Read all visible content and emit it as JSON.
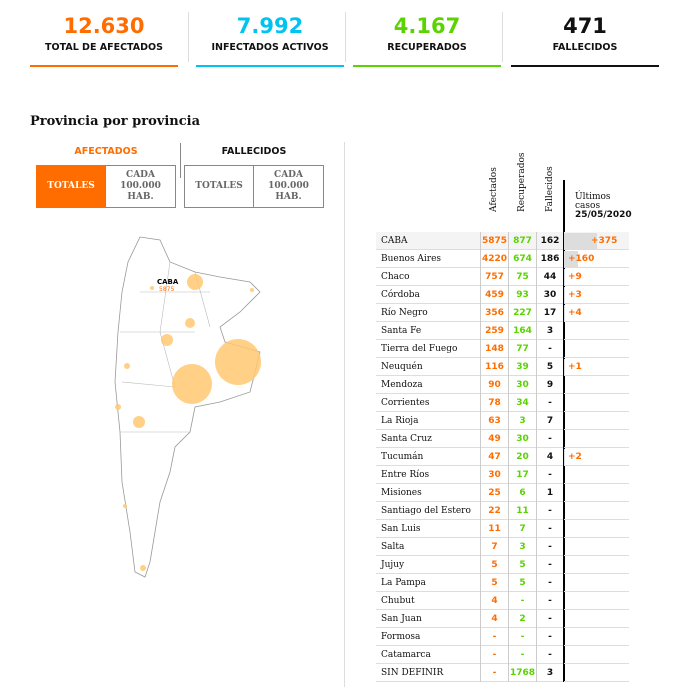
{
  "stats": [
    {
      "value": "12.630",
      "label": "TOTAL DE AFECTADOS",
      "color": "#ff6d00"
    },
    {
      "value": "7.992",
      "label": "INFECTADOS ACTIVOS",
      "color": "#00c3f0"
    },
    {
      "value": "4.167",
      "label": "RECUPERADOS",
      "color": "#5ad300"
    },
    {
      "value": "471",
      "label": "FALLECIDOS",
      "color": "#111111"
    }
  ],
  "title": "Provincia por provincia",
  "filters": {
    "afectados": "AFECTADOS",
    "fallecidos": "FALLECIDOS",
    "totales": "TOTALES",
    "per100k": "CADA 100.000 HAB.",
    "selected": "AFECTADOS / TOTALES"
  },
  "map": {
    "label": "CABA",
    "value": "5875"
  },
  "table": {
    "headers": {
      "afectados": "Afectados",
      "recuperados": "Recuperados",
      "fallecidos": "Fallecidos",
      "last1": "Últimos casos",
      "last2": "25/05/2020"
    },
    "rows": [
      {
        "name": "CABA",
        "a": "5875",
        "r": "877",
        "f": "162",
        "last": "+375",
        "lastv": 375
      },
      {
        "name": "Buenos Aires",
        "a": "4220",
        "r": "674",
        "f": "186",
        "last": "+160",
        "lastv": 160
      },
      {
        "name": "Chaco",
        "a": "757",
        "r": "75",
        "f": "44",
        "last": "+9",
        "lastv": 9
      },
      {
        "name": "Córdoba",
        "a": "459",
        "r": "93",
        "f": "30",
        "last": "+3",
        "lastv": 3
      },
      {
        "name": "Río Negro",
        "a": "356",
        "r": "227",
        "f": "17",
        "last": "+4",
        "lastv": 4
      },
      {
        "name": "Santa Fe",
        "a": "259",
        "r": "164",
        "f": "3",
        "last": "",
        "lastv": 0
      },
      {
        "name": "Tierra del Fuego",
        "a": "148",
        "r": "77",
        "f": "-",
        "last": "",
        "lastv": 0
      },
      {
        "name": "Neuquén",
        "a": "116",
        "r": "39",
        "f": "5",
        "last": "+1",
        "lastv": 1
      },
      {
        "name": "Mendoza",
        "a": "90",
        "r": "30",
        "f": "9",
        "last": "",
        "lastv": 0
      },
      {
        "name": "Corrientes",
        "a": "78",
        "r": "34",
        "f": "-",
        "last": "",
        "lastv": 0
      },
      {
        "name": "La Rioja",
        "a": "63",
        "r": "3",
        "f": "7",
        "last": "",
        "lastv": 0
      },
      {
        "name": "Santa Cruz",
        "a": "49",
        "r": "30",
        "f": "-",
        "last": "",
        "lastv": 0
      },
      {
        "name": "Tucumán",
        "a": "47",
        "r": "20",
        "f": "4",
        "last": "+2",
        "lastv": 2
      },
      {
        "name": "Entre Ríos",
        "a": "30",
        "r": "17",
        "f": "-",
        "last": "",
        "lastv": 0
      },
      {
        "name": "Misiones",
        "a": "25",
        "r": "6",
        "f": "1",
        "last": "",
        "lastv": 0
      },
      {
        "name": "Santiago del Estero",
        "a": "22",
        "r": "11",
        "f": "-",
        "last": "",
        "lastv": 0
      },
      {
        "name": "San Luis",
        "a": "11",
        "r": "7",
        "f": "-",
        "last": "",
        "lastv": 0
      },
      {
        "name": "Salta",
        "a": "7",
        "r": "3",
        "f": "-",
        "last": "",
        "lastv": 0
      },
      {
        "name": "Jujuy",
        "a": "5",
        "r": "5",
        "f": "-",
        "last": "",
        "lastv": 0
      },
      {
        "name": "La Pampa",
        "a": "5",
        "r": "5",
        "f": "-",
        "last": "",
        "lastv": 0
      },
      {
        "name": "Chubut",
        "a": "4",
        "r": "-",
        "f": "-",
        "last": "",
        "lastv": 0
      },
      {
        "name": "San Juan",
        "a": "4",
        "r": "2",
        "f": "-",
        "last": "",
        "lastv": 0
      },
      {
        "name": "Formosa",
        "a": "-",
        "r": "-",
        "f": "-",
        "last": "",
        "lastv": 0
      },
      {
        "name": "Catamarca",
        "a": "-",
        "r": "-",
        "f": "-",
        "last": "",
        "lastv": 0
      },
      {
        "name": "SIN DEFINIR",
        "a": "-",
        "r": "1768",
        "f": "3",
        "last": "",
        "lastv": 0
      }
    ]
  }
}
